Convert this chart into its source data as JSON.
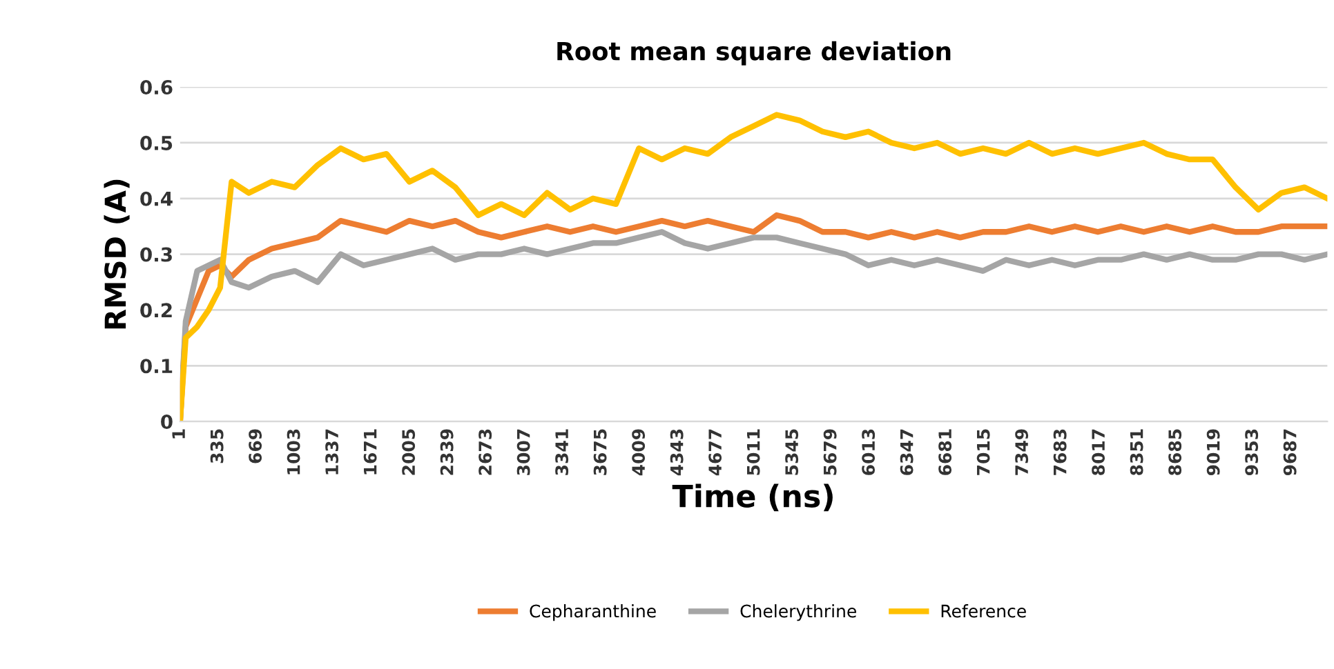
{
  "chart_data": {
    "type": "line",
    "title": "Root mean square deviation",
    "xlabel": "Time (ns)",
    "ylabel": "RMSD (A)",
    "x": [
      1,
      50,
      150,
      250,
      350,
      450,
      600,
      800,
      1000,
      1200,
      1400,
      1600,
      1800,
      2000,
      2200,
      2400,
      2600,
      2800,
      3000,
      3200,
      3400,
      3600,
      3800,
      4000,
      4200,
      4400,
      4600,
      4800,
      5000,
      5200,
      5400,
      5600,
      5800,
      6000,
      6200,
      6400,
      6600,
      6800,
      7000,
      7200,
      7400,
      7600,
      7800,
      8000,
      8200,
      8400,
      8600,
      8800,
      9000,
      9200,
      9400,
      9600,
      9800,
      10000
    ],
    "series": [
      {
        "name": "Cepharanthine",
        "color": "#ed7d31",
        "values": [
          0,
          0.17,
          0.22,
          0.27,
          0.28,
          0.26,
          0.29,
          0.31,
          0.32,
          0.33,
          0.36,
          0.35,
          0.34,
          0.36,
          0.35,
          0.36,
          0.34,
          0.33,
          0.34,
          0.35,
          0.34,
          0.35,
          0.34,
          0.35,
          0.36,
          0.35,
          0.36,
          0.35,
          0.34,
          0.37,
          0.36,
          0.34,
          0.34,
          0.33,
          0.34,
          0.33,
          0.34,
          0.33,
          0.34,
          0.34,
          0.35,
          0.34,
          0.35,
          0.34,
          0.35,
          0.34,
          0.35,
          0.34,
          0.35,
          0.34,
          0.34,
          0.35,
          0.35,
          0.35
        ]
      },
      {
        "name": "Chelerythrine",
        "color": "#a5a5a5",
        "values": [
          0,
          0.18,
          0.27,
          0.28,
          0.29,
          0.25,
          0.24,
          0.26,
          0.27,
          0.25,
          0.3,
          0.28,
          0.29,
          0.3,
          0.31,
          0.29,
          0.3,
          0.3,
          0.31,
          0.3,
          0.31,
          0.32,
          0.32,
          0.33,
          0.34,
          0.32,
          0.31,
          0.32,
          0.33,
          0.33,
          0.32,
          0.31,
          0.3,
          0.28,
          0.29,
          0.28,
          0.29,
          0.28,
          0.27,
          0.29,
          0.28,
          0.29,
          0.28,
          0.29,
          0.29,
          0.3,
          0.29,
          0.3,
          0.29,
          0.29,
          0.3,
          0.3,
          0.29,
          0.3
        ]
      },
      {
        "name": "Reference",
        "color": "#ffc000",
        "values": [
          0,
          0.15,
          0.17,
          0.2,
          0.24,
          0.43,
          0.41,
          0.43,
          0.42,
          0.46,
          0.49,
          0.47,
          0.48,
          0.43,
          0.45,
          0.42,
          0.37,
          0.39,
          0.37,
          0.41,
          0.38,
          0.4,
          0.39,
          0.49,
          0.47,
          0.49,
          0.48,
          0.51,
          0.53,
          0.55,
          0.54,
          0.52,
          0.51,
          0.52,
          0.5,
          0.49,
          0.5,
          0.48,
          0.49,
          0.48,
          0.5,
          0.48,
          0.49,
          0.48,
          0.49,
          0.5,
          0.48,
          0.47,
          0.47,
          0.42,
          0.38,
          0.41,
          0.42,
          0.4
        ]
      }
    ],
    "xlim": [
      1,
      10000
    ],
    "xticks": [
      1,
      335,
      669,
      1003,
      1337,
      1671,
      2005,
      2339,
      2673,
      3007,
      3341,
      3675,
      4009,
      4343,
      4677,
      5011,
      5345,
      5679,
      6013,
      6347,
      6681,
      7015,
      7349,
      7683,
      8017,
      8351,
      8685,
      9019,
      9353,
      9687
    ],
    "ylim": [
      0,
      0.6
    ],
    "yticks": [
      0,
      0.1,
      0.2,
      0.3,
      0.4,
      0.5,
      0.6
    ],
    "grid": "y",
    "legend": "bottom",
    "line_style": "solid",
    "marker": "none"
  }
}
